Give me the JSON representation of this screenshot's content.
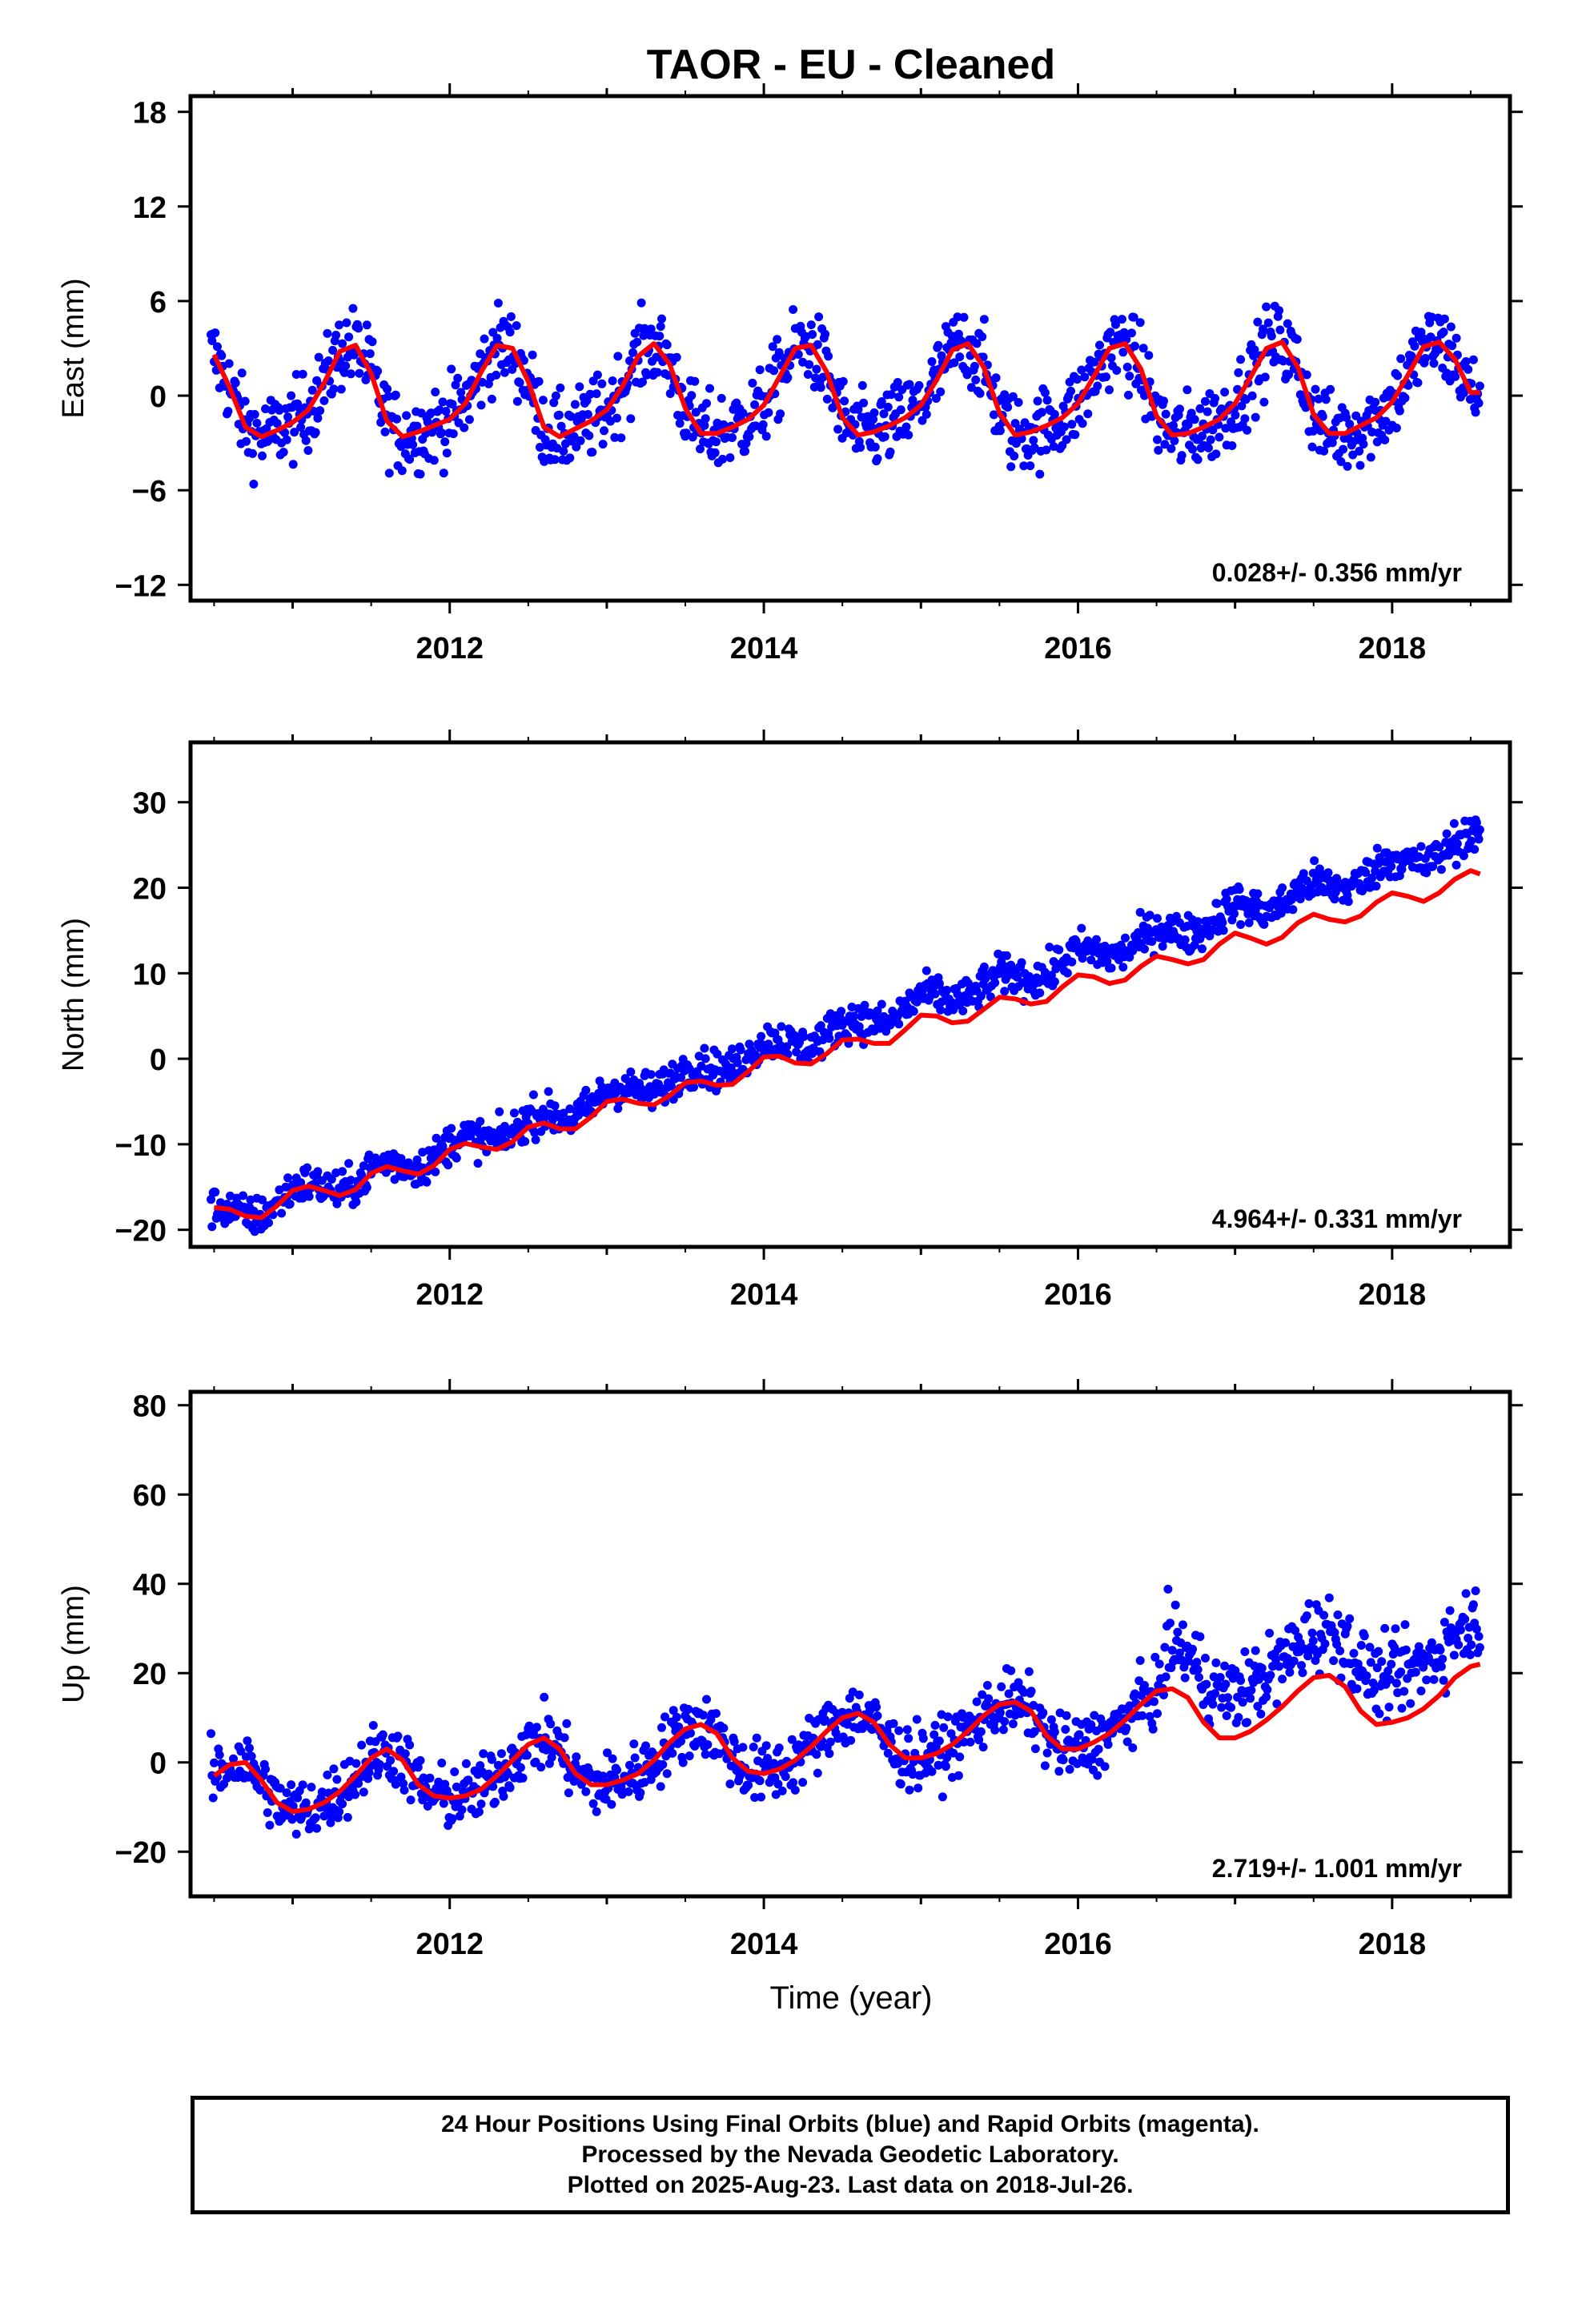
{
  "chart_data": {
    "title": "TAOR  - EU - Cleaned",
    "xlabel": "Time (year)",
    "xlim": [
      2010.35,
      2018.75
    ],
    "x_ticks": [
      2012,
      2014,
      2016,
      2018
    ],
    "panels": [
      {
        "type": "scatter",
        "ylabel": "East (mm)",
        "ylim": [
          -13,
          19
        ],
        "y_ticks": [
          -12,
          -6,
          0,
          6,
          12,
          18
        ],
        "rate_label": "0.028+/- 0.356 mm/yr",
        "observations_color": "#0000ff",
        "model_color": "#ff0000",
        "model": {
          "x": [
            2010.5,
            2010.6,
            2010.7,
            2010.8,
            2010.9,
            2011.0,
            2011.1,
            2011.2,
            2011.3,
            2011.4,
            2011.5,
            2011.6,
            2011.7,
            2011.8,
            2011.9,
            2012.0,
            2012.1,
            2012.2,
            2012.3,
            2012.4,
            2012.5,
            2012.6,
            2012.7,
            2012.8,
            2012.9,
            2013.0,
            2013.1,
            2013.2,
            2013.3,
            2013.4,
            2013.5,
            2013.6,
            2013.7,
            2013.8,
            2013.9,
            2014.0,
            2014.1,
            2014.2,
            2014.3,
            2014.4,
            2014.5,
            2014.6,
            2014.7,
            2014.8,
            2014.9,
            2015.0,
            2015.1,
            2015.2,
            2015.3,
            2015.4,
            2015.5,
            2015.6,
            2015.7,
            2015.8,
            2015.9,
            2016.0,
            2016.1,
            2016.2,
            2016.3,
            2016.4,
            2016.5,
            2016.6,
            2016.7,
            2016.8,
            2016.9,
            2017.0,
            2017.1,
            2017.2,
            2017.3,
            2017.4,
            2017.5,
            2017.6,
            2017.7,
            2017.8,
            2017.9,
            2018.0,
            2018.1,
            2018.2,
            2018.3,
            2018.4,
            2018.5,
            2018.56
          ],
          "y": [
            2.6,
            0.5,
            -2.0,
            -2.6,
            -2.2,
            -1.7,
            -0.9,
            0.8,
            2.8,
            3.2,
            1.4,
            -1.6,
            -2.6,
            -2.3,
            -1.9,
            -1.5,
            -0.5,
            1.5,
            3.2,
            3.0,
            0.9,
            -2.0,
            -2.6,
            -2.1,
            -1.6,
            -0.9,
            0.6,
            2.5,
            3.3,
            2.0,
            -0.8,
            -2.4,
            -2.4,
            -2.0,
            -1.5,
            -0.6,
            1.2,
            3.0,
            3.2,
            1.5,
            -1.4,
            -2.5,
            -2.3,
            -1.9,
            -1.4,
            -0.6,
            1.0,
            2.9,
            3.3,
            1.8,
            -1.1,
            -2.5,
            -2.3,
            -1.9,
            -1.4,
            -0.5,
            1.2,
            3.0,
            3.3,
            1.7,
            -1.3,
            -2.5,
            -2.4,
            -2.0,
            -1.5,
            -0.5,
            1.2,
            3.0,
            3.4,
            1.8,
            -1.2,
            -2.4,
            -2.4,
            -1.9,
            -1.4,
            -0.4,
            1.3,
            3.1,
            3.4,
            2.3,
            0.2,
            0.2
          ]
        }
      },
      {
        "type": "scatter",
        "ylabel": "North (mm)",
        "ylim": [
          -22,
          37
        ],
        "y_ticks": [
          -20,
          -10,
          0,
          10,
          20,
          30
        ],
        "rate_label": "4.964+/- 0.331 mm/yr",
        "observations_color": "#0000ff",
        "model_color": "#ff0000",
        "model": {
          "x": [
            2010.5,
            2010.6,
            2010.7,
            2010.8,
            2010.9,
            2011.0,
            2011.1,
            2011.2,
            2011.3,
            2011.4,
            2011.5,
            2011.6,
            2011.7,
            2011.8,
            2011.9,
            2012.0,
            2012.1,
            2012.2,
            2012.3,
            2012.4,
            2012.5,
            2012.6,
            2012.7,
            2012.8,
            2012.9,
            2013.0,
            2013.1,
            2013.2,
            2013.3,
            2013.4,
            2013.5,
            2013.6,
            2013.7,
            2013.8,
            2013.9,
            2014.0,
            2014.1,
            2014.2,
            2014.3,
            2014.4,
            2014.5,
            2014.6,
            2014.7,
            2014.8,
            2014.9,
            2015.0,
            2015.1,
            2015.2,
            2015.3,
            2015.4,
            2015.5,
            2015.6,
            2015.7,
            2015.8,
            2015.9,
            2016.0,
            2016.1,
            2016.2,
            2016.3,
            2016.4,
            2016.5,
            2016.6,
            2016.7,
            2016.8,
            2016.9,
            2017.0,
            2017.1,
            2017.2,
            2017.3,
            2017.4,
            2017.5,
            2017.6,
            2017.7,
            2017.8,
            2017.9,
            2018.0,
            2018.1,
            2018.2,
            2018.3,
            2018.4,
            2018.5,
            2018.56
          ],
          "y": [
            -17.4,
            -17.6,
            -18.4,
            -18.6,
            -17.2,
            -15.4,
            -14.9,
            -15.4,
            -16.0,
            -15.3,
            -13.4,
            -12.6,
            -13.1,
            -13.5,
            -12.5,
            -10.6,
            -9.9,
            -10.3,
            -10.6,
            -9.7,
            -8.0,
            -7.5,
            -8.2,
            -8.2,
            -6.8,
            -5.0,
            -4.7,
            -5.2,
            -5.4,
            -4.3,
            -2.8,
            -2.6,
            -3.1,
            -3.0,
            -1.5,
            0.2,
            0.3,
            -0.5,
            -0.6,
            0.6,
            2.2,
            2.3,
            1.8,
            1.8,
            3.4,
            5.1,
            5.0,
            4.2,
            4.4,
            5.8,
            7.2,
            7.0,
            6.4,
            6.7,
            8.4,
            9.8,
            9.6,
            8.8,
            9.2,
            10.8,
            12.0,
            11.6,
            11.1,
            11.6,
            13.4,
            14.7,
            14.1,
            13.4,
            14.2,
            15.9,
            16.9,
            16.3,
            16.0,
            16.7,
            18.3,
            19.4,
            19.0,
            18.4,
            19.4,
            21.0,
            22.0,
            21.6
          ]
        }
      },
      {
        "type": "scatter",
        "ylabel": "Up (mm)",
        "ylim": [
          -30,
          83
        ],
        "y_ticks": [
          -20,
          0,
          20,
          40,
          60,
          80
        ],
        "rate_label": "2.719+/- 1.001 mm/yr",
        "observations_color": "#0000ff",
        "model_color": "#ff0000",
        "model": {
          "x": [
            2010.5,
            2010.6,
            2010.7,
            2010.8,
            2010.9,
            2011.0,
            2011.1,
            2011.2,
            2011.3,
            2011.4,
            2011.5,
            2011.6,
            2011.7,
            2011.8,
            2011.9,
            2012.0,
            2012.1,
            2012.2,
            2012.3,
            2012.4,
            2012.5,
            2012.6,
            2012.7,
            2012.8,
            2012.9,
            2013.0,
            2013.1,
            2013.2,
            2013.3,
            2013.4,
            2013.5,
            2013.6,
            2013.7,
            2013.8,
            2013.9,
            2014.0,
            2014.1,
            2014.2,
            2014.3,
            2014.4,
            2014.5,
            2014.6,
            2014.7,
            2014.8,
            2014.9,
            2015.0,
            2015.1,
            2015.2,
            2015.3,
            2015.4,
            2015.5,
            2015.6,
            2015.7,
            2015.8,
            2015.9,
            2016.0,
            2016.1,
            2016.2,
            2016.3,
            2016.4,
            2016.5,
            2016.6,
            2016.7,
            2016.8,
            2016.9,
            2017.0,
            2017.1,
            2017.2,
            2017.3,
            2017.4,
            2017.5,
            2017.6,
            2017.7,
            2017.8,
            2017.9,
            2018.0,
            2018.1,
            2018.2,
            2018.3,
            2018.4,
            2018.5,
            2018.56
          ],
          "y": [
            -3.0,
            -0.5,
            0.0,
            -4.0,
            -9.0,
            -11.0,
            -10.5,
            -9.0,
            -6.5,
            -3.0,
            1.0,
            3.0,
            0.5,
            -5.0,
            -7.5,
            -8.0,
            -7.5,
            -6.0,
            -3.0,
            0.5,
            4.0,
            5.5,
            3.0,
            -2.5,
            -5.0,
            -5.0,
            -4.0,
            -2.5,
            0.5,
            4.5,
            7.5,
            8.5,
            6.5,
            1.0,
            -2.0,
            -2.5,
            -1.5,
            0.5,
            3.5,
            7.0,
            10.0,
            11.0,
            9.0,
            4.0,
            1.0,
            1.0,
            2.0,
            4.0,
            7.0,
            10.5,
            13.0,
            13.5,
            11.5,
            6.0,
            3.0,
            3.0,
            4.5,
            6.5,
            9.5,
            13.0,
            16.0,
            16.5,
            14.5,
            9.0,
            5.5,
            5.5,
            7.0,
            9.5,
            12.5,
            16.0,
            19.0,
            19.5,
            17.0,
            11.5,
            8.5,
            9.0,
            10.0,
            12.0,
            15.0,
            19.0,
            21.5,
            22.0
          ]
        }
      }
    ]
  },
  "footer": {
    "line1": "24 Hour Positions Using Final Orbits (blue) and Rapid Orbits (magenta).",
    "line2": "Processed by the Nevada Geodetic Laboratory.",
    "line3": "Plotted on 2025-Aug-23. Last data on 2018-Jul-26."
  }
}
